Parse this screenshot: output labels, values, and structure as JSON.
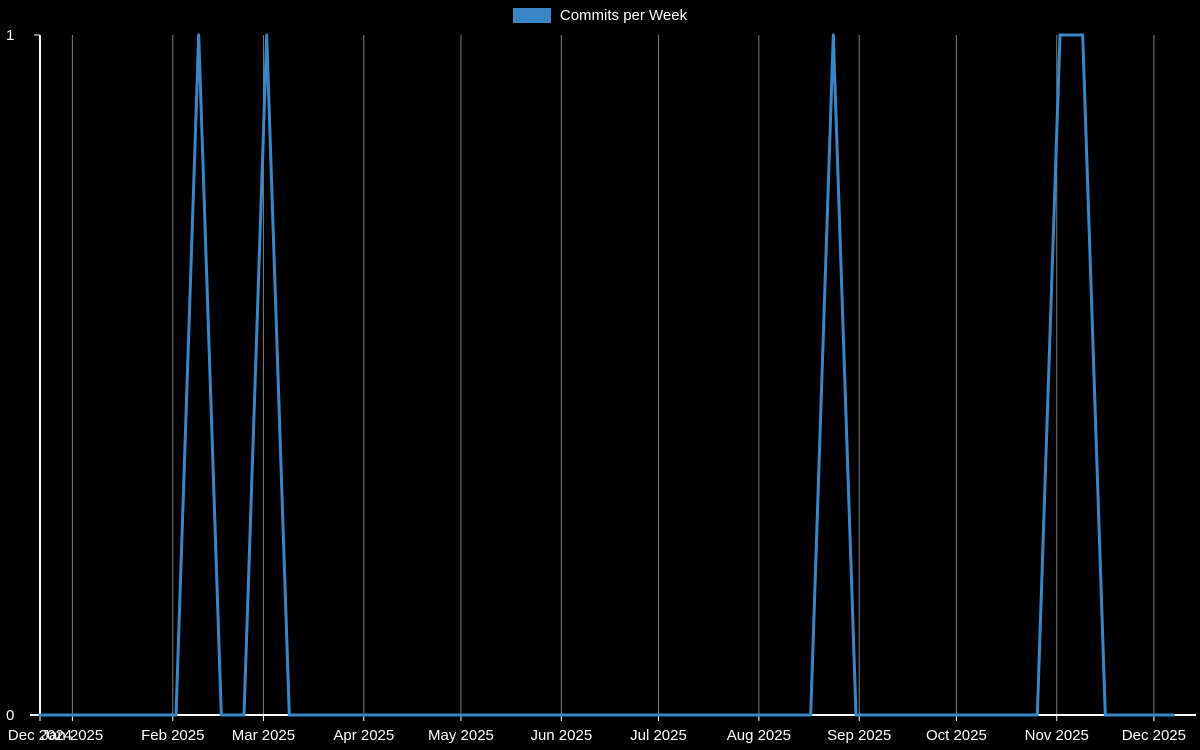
{
  "colors": {
    "background": "#000000",
    "axis": "#ffffff",
    "text": "#ffffff",
    "gridline": "#7d7d7d",
    "line": "#3a87c8"
  },
  "legend": {
    "label": "Commits per Week"
  },
  "axes": {
    "y_ticks": [
      {
        "value": 0,
        "label": "0"
      },
      {
        "value": 1,
        "label": "1"
      }
    ]
  },
  "chart_data": {
    "type": "line",
    "title": "",
    "legend_position": "top-center",
    "grid": "vertical-only",
    "ylim": [
      0,
      1
    ],
    "x_start": "2024-12-22",
    "x_end": "2025-12-14",
    "x_ticks": [
      [
        "2024-12-22",
        "Dec 2024"
      ],
      [
        "2025-01-01",
        "Jan 2025"
      ],
      [
        "2025-02-01",
        "Feb 2025"
      ],
      [
        "2025-03-01",
        "Mar 2025"
      ],
      [
        "2025-04-01",
        "Apr 2025"
      ],
      [
        "2025-05-01",
        "May 2025"
      ],
      [
        "2025-06-01",
        "Jun 2025"
      ],
      [
        "2025-07-01",
        "Jul 2025"
      ],
      [
        "2025-08-01",
        "Aug 2025"
      ],
      [
        "2025-09-01",
        "Sep 2025"
      ],
      [
        "2025-10-01",
        "Oct 2025"
      ],
      [
        "2025-11-01",
        "Nov 2025"
      ],
      [
        "2025-12-01",
        "Dec 2025"
      ]
    ],
    "series": [
      {
        "name": "Commits per Week",
        "color": "#3a87c8",
        "points": [
          [
            "2024-12-22",
            0
          ],
          [
            "2024-12-29",
            0
          ],
          [
            "2025-01-05",
            0
          ],
          [
            "2025-01-12",
            0
          ],
          [
            "2025-01-19",
            0
          ],
          [
            "2025-01-26",
            0
          ],
          [
            "2025-02-02",
            0
          ],
          [
            "2025-02-09",
            1
          ],
          [
            "2025-02-16",
            0
          ],
          [
            "2025-02-23",
            0
          ],
          [
            "2025-03-02",
            1
          ],
          [
            "2025-03-09",
            0
          ],
          [
            "2025-03-16",
            0
          ],
          [
            "2025-03-23",
            0
          ],
          [
            "2025-03-30",
            0
          ],
          [
            "2025-04-06",
            0
          ],
          [
            "2025-04-13",
            0
          ],
          [
            "2025-04-20",
            0
          ],
          [
            "2025-04-27",
            0
          ],
          [
            "2025-05-04",
            0
          ],
          [
            "2025-05-11",
            0
          ],
          [
            "2025-05-18",
            0
          ],
          [
            "2025-05-25",
            0
          ],
          [
            "2025-06-01",
            0
          ],
          [
            "2025-06-08",
            0
          ],
          [
            "2025-06-15",
            0
          ],
          [
            "2025-06-22",
            0
          ],
          [
            "2025-06-29",
            0
          ],
          [
            "2025-07-06",
            0
          ],
          [
            "2025-07-13",
            0
          ],
          [
            "2025-07-20",
            0
          ],
          [
            "2025-07-27",
            0
          ],
          [
            "2025-08-03",
            0
          ],
          [
            "2025-08-10",
            0
          ],
          [
            "2025-08-17",
            0
          ],
          [
            "2025-08-24",
            1
          ],
          [
            "2025-08-31",
            0
          ],
          [
            "2025-09-07",
            0
          ],
          [
            "2025-09-14",
            0
          ],
          [
            "2025-09-21",
            0
          ],
          [
            "2025-09-28",
            0
          ],
          [
            "2025-10-05",
            0
          ],
          [
            "2025-10-12",
            0
          ],
          [
            "2025-10-19",
            0
          ],
          [
            "2025-10-26",
            0
          ],
          [
            "2025-11-02",
            1
          ],
          [
            "2025-11-09",
            1
          ],
          [
            "2025-11-16",
            0
          ],
          [
            "2025-11-23",
            0
          ],
          [
            "2025-11-30",
            0
          ],
          [
            "2025-12-07",
            0
          ]
        ]
      }
    ]
  }
}
